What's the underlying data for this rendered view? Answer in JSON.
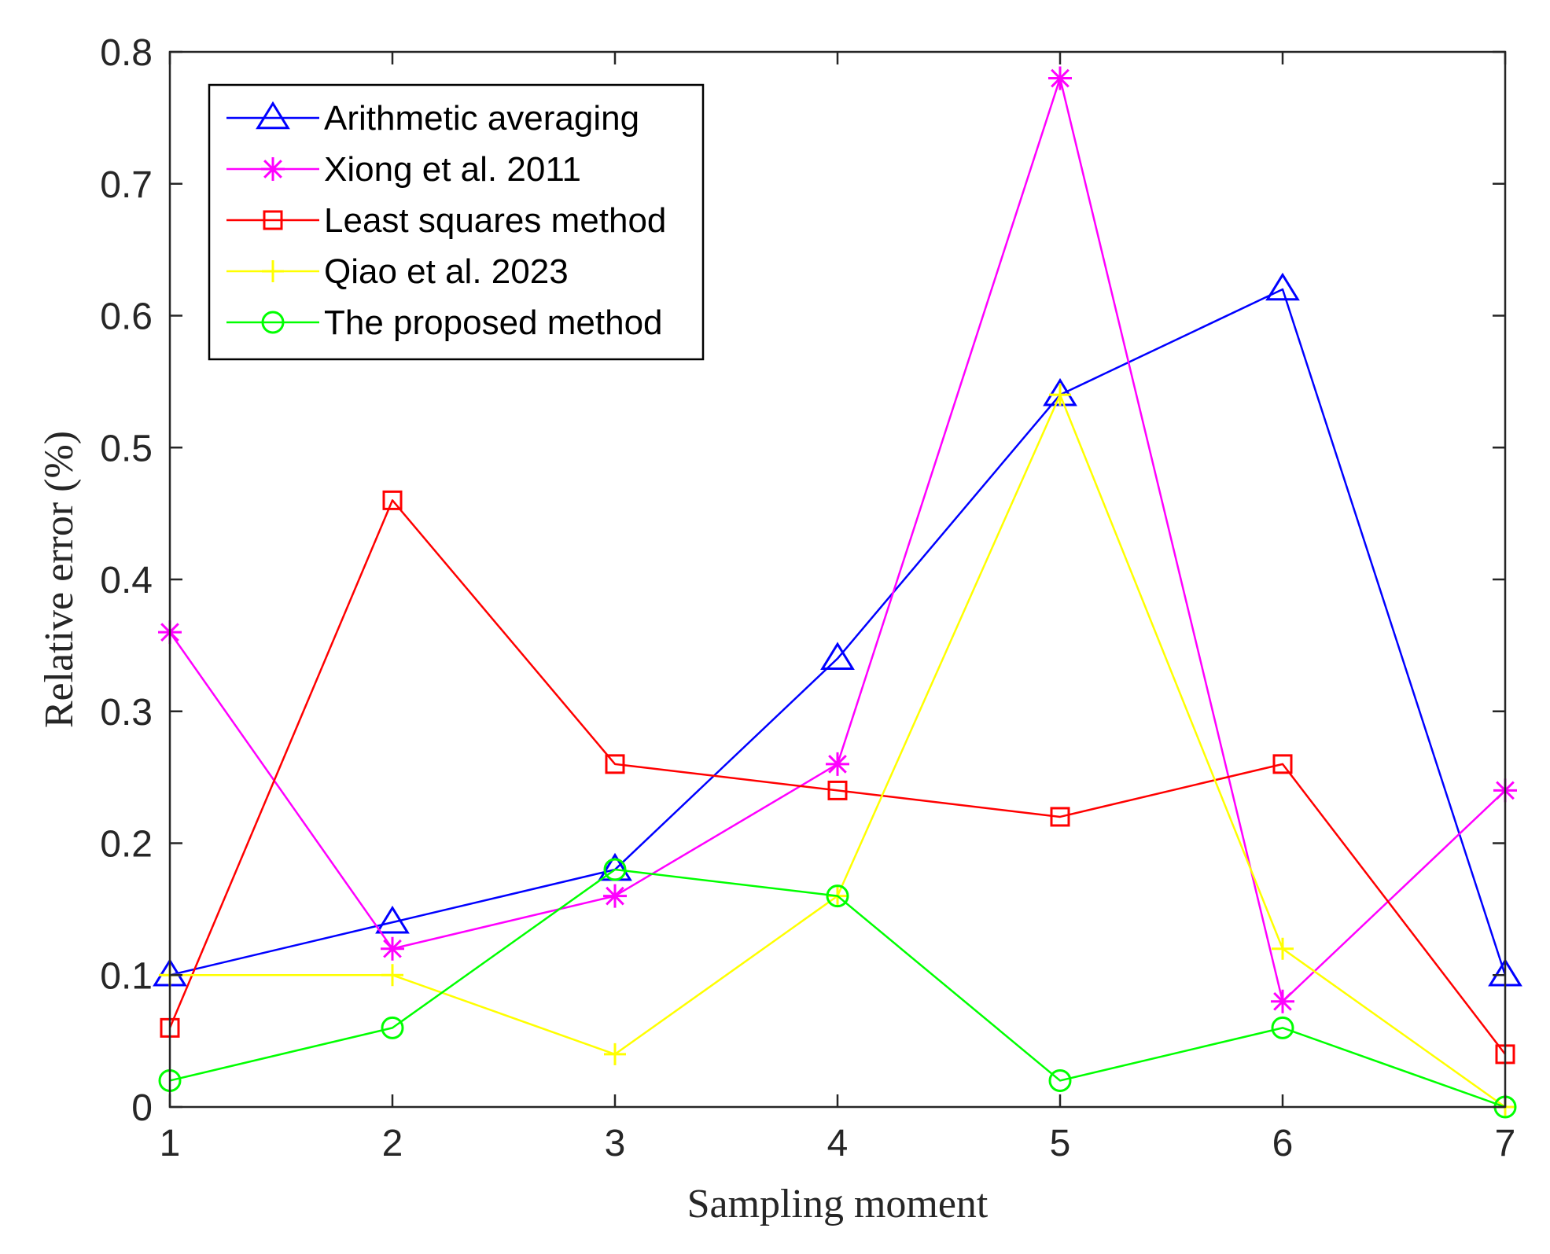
{
  "chart_data": {
    "type": "line",
    "title": "",
    "xlabel": "Sampling moment",
    "ylabel": "Relative error (%)",
    "x": [
      1,
      2,
      3,
      4,
      5,
      6,
      7
    ],
    "xlim": [
      1,
      7
    ],
    "ylim": [
      0,
      0.8
    ],
    "xticks": [
      "1",
      "2",
      "3",
      "4",
      "5",
      "6",
      "7"
    ],
    "yticks": [
      "0",
      "0.1",
      "0.2",
      "0.3",
      "0.4",
      "0.5",
      "0.6",
      "0.7",
      "0.8"
    ],
    "grid": false,
    "legend_position": "top-left",
    "series": [
      {
        "name": "Arithmetic averaging",
        "color": "#0000ff",
        "marker": "triangle",
        "values": [
          0.1,
          0.14,
          0.18,
          0.34,
          0.54,
          0.62,
          0.1
        ]
      },
      {
        "name": "Xiong et al. 2011",
        "color": "#ff00ff",
        "marker": "asterisk",
        "values": [
          0.36,
          0.12,
          0.16,
          0.26,
          0.78,
          0.08,
          0.24
        ]
      },
      {
        "name": "Least squares method",
        "color": "#ff0000",
        "marker": "square",
        "values": [
          0.06,
          0.46,
          0.26,
          0.24,
          0.22,
          0.26,
          0.04
        ]
      },
      {
        "name": "Qiao et al. 2023",
        "color": "#ffff00",
        "marker": "plus",
        "values": [
          0.1,
          0.1,
          0.04,
          0.16,
          0.54,
          0.12,
          0.0
        ]
      },
      {
        "name": "The proposed method",
        "color": "#00ff00",
        "marker": "circle",
        "values": [
          0.02,
          0.06,
          0.18,
          0.16,
          0.02,
          0.06,
          0.0
        ]
      }
    ]
  }
}
